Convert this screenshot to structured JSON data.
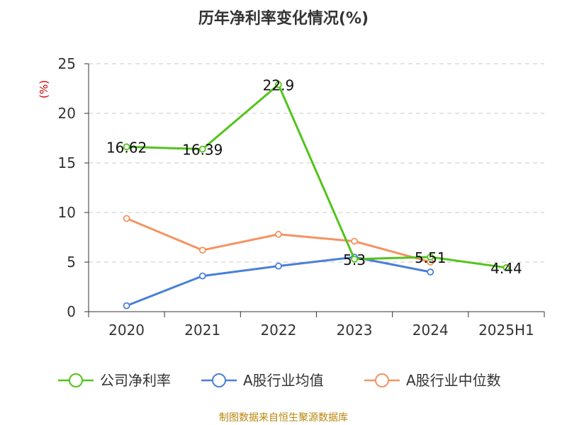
{
  "chart_data": {
    "type": "line",
    "title": "历年净利率变化情况(%)",
    "ylabel": "(%)",
    "xlabel": "",
    "ylim": [
      0,
      25
    ],
    "yticks": [
      0,
      5,
      10,
      15,
      20,
      25
    ],
    "grid": true,
    "categories": [
      "2020",
      "2021",
      "2022",
      "2023",
      "2024",
      "2025H1"
    ],
    "series": [
      {
        "name": "公司净利率",
        "color": "#52c41a",
        "values": [
          16.62,
          16.39,
          22.9,
          5.3,
          5.51,
          4.44
        ],
        "labels": [
          "16.62",
          "16.39",
          "22.9",
          "5.3",
          "5.51",
          "4.44"
        ]
      },
      {
        "name": "A股行业均值",
        "color": "#4a7fd8",
        "values": [
          0.6,
          3.6,
          4.6,
          5.5,
          4.0,
          null
        ]
      },
      {
        "name": "A股行业中位数",
        "color": "#f59362",
        "values": [
          9.4,
          6.2,
          7.8,
          7.1,
          5.0,
          null
        ]
      }
    ],
    "legend_position": "bottom",
    "source": "制图数据来自恒生聚源数据库"
  }
}
